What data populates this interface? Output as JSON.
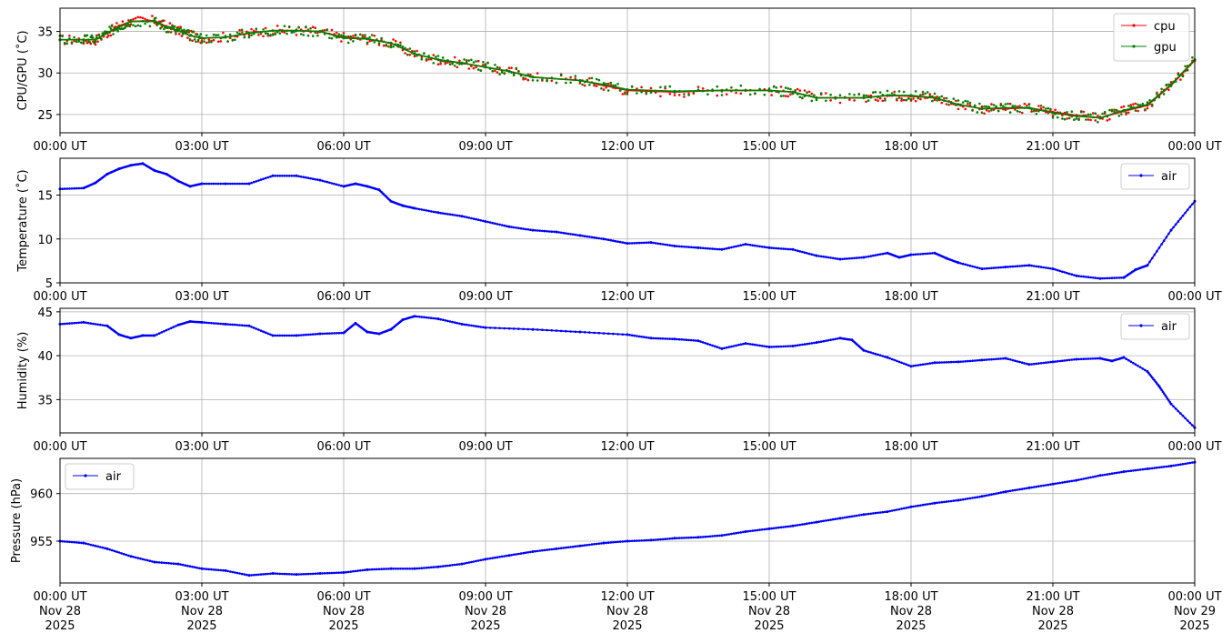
{
  "chart_data": [
    {
      "type": "line",
      "ylabel": "CPU/GPU (˚C)",
      "xlabel": "",
      "title": "",
      "x_tick_labels": [
        "00:00 UT",
        "03:00 UT",
        "06:00 UT",
        "09:00 UT",
        "12:00 UT",
        "15:00 UT",
        "18:00 UT",
        "21:00 UT",
        "00:00 UT"
      ],
      "x_hours": [
        0,
        3,
        6,
        9,
        12,
        15,
        18,
        21,
        24
      ],
      "y_ticks": [
        25,
        30,
        35
      ],
      "ylim": [
        22.8,
        37.8
      ],
      "grid": true,
      "legend_position": "top-right",
      "series": [
        {
          "name": "cpu",
          "color": "#ff0000",
          "x": [
            0,
            0.5,
            0.75,
            1.0,
            1.25,
            1.5,
            2.0,
            2.25,
            2.5,
            2.75,
            3.0,
            3.5,
            4.0,
            4.5,
            5.0,
            5.5,
            6.0,
            6.5,
            7.0,
            7.5,
            8.0,
            8.5,
            9.0,
            9.5,
            10.0,
            11.0,
            11.5,
            12.0,
            13.0,
            14.0,
            15.0,
            15.5,
            16.0,
            17.0,
            17.5,
            18.0,
            18.5,
            19.0,
            19.5,
            20.0,
            20.5,
            21.0,
            21.5,
            22.0,
            22.5,
            23.0,
            23.5,
            24.0
          ],
          "values": [
            34,
            34,
            34,
            34.8,
            35.7,
            36.2,
            36.3,
            35.6,
            35.1,
            34.5,
            34.2,
            34.3,
            34.8,
            35.1,
            35.1,
            35.0,
            34.3,
            34.1,
            33.6,
            32.3,
            31.6,
            31.2,
            30.7,
            30.2,
            29.5,
            29.1,
            28.5,
            27.9,
            27.7,
            27.9,
            27.9,
            27.7,
            27.0,
            27.0,
            27.3,
            27.2,
            27.0,
            26.2,
            25.7,
            25.7,
            25.8,
            25.3,
            24.9,
            24.6,
            25.4,
            26.1,
            28.5,
            31.5
          ]
        },
        {
          "name": "gpu",
          "color": "#008000",
          "x": [
            0,
            0.5,
            0.75,
            1.0,
            1.25,
            1.5,
            2.0,
            2.25,
            2.5,
            2.75,
            3.0,
            3.5,
            4.0,
            4.5,
            5.0,
            5.5,
            6.0,
            6.5,
            7.0,
            7.5,
            8.0,
            8.5,
            9.0,
            9.5,
            10.0,
            11.0,
            11.5,
            12.0,
            13.0,
            14.0,
            15.0,
            15.5,
            16.0,
            17.0,
            17.5,
            18.0,
            18.5,
            19.0,
            19.5,
            20.0,
            20.5,
            21.0,
            21.5,
            22.0,
            22.5,
            23.0,
            23.5,
            24.0
          ],
          "values": [
            34,
            34,
            34,
            34.8,
            35.6,
            36.2,
            36.2,
            35.5,
            35.1,
            34.5,
            34.2,
            34.3,
            34.8,
            35.1,
            35.1,
            35.0,
            34.2,
            34.1,
            33.6,
            32.3,
            31.6,
            31.2,
            30.7,
            30.2,
            29.5,
            29.1,
            28.6,
            28.0,
            27.8,
            27.9,
            27.9,
            27.7,
            27.0,
            27.0,
            27.3,
            27.3,
            27.0,
            26.2,
            25.7,
            25.8,
            25.8,
            25.2,
            24.8,
            24.6,
            25.5,
            26.2,
            28.6,
            31.6
          ]
        }
      ]
    },
    {
      "type": "line",
      "ylabel": "Temperature (˚C)",
      "xlabel": "",
      "title": "",
      "x_tick_labels": [
        "00:00 UT",
        "03:00 UT",
        "06:00 UT",
        "09:00 UT",
        "12:00 UT",
        "15:00 UT",
        "18:00 UT",
        "21:00 UT",
        "00:00 UT"
      ],
      "x_hours": [
        0,
        3,
        6,
        9,
        12,
        15,
        18,
        21,
        24
      ],
      "y_ticks": [
        5,
        10,
        15
      ],
      "ylim": [
        5,
        19.2
      ],
      "grid": true,
      "legend_position": "top-right",
      "series": [
        {
          "name": "air",
          "color": "#0000ff",
          "x": [
            0,
            0.5,
            0.75,
            1.0,
            1.25,
            1.5,
            1.75,
            2.0,
            2.25,
            2.5,
            2.75,
            3.0,
            3.5,
            4.0,
            4.5,
            5.0,
            5.5,
            6.0,
            6.25,
            6.5,
            6.75,
            7.0,
            7.25,
            7.5,
            8.0,
            8.5,
            9.0,
            9.5,
            10.0,
            10.5,
            11.0,
            11.5,
            12.0,
            12.5,
            13.0,
            13.5,
            14.0,
            14.5,
            15.0,
            15.5,
            16.0,
            16.5,
            17.0,
            17.5,
            17.75,
            18.0,
            18.5,
            18.75,
            19.0,
            19.5,
            20.0,
            20.5,
            21.0,
            21.5,
            22.0,
            22.5,
            22.75,
            23.0,
            23.5,
            24.0
          ],
          "values": [
            15.7,
            15.8,
            16.4,
            17.4,
            18.0,
            18.4,
            18.6,
            17.8,
            17.4,
            16.6,
            16.0,
            16.3,
            16.3,
            16.3,
            17.2,
            17.2,
            16.7,
            16.0,
            16.3,
            16.0,
            15.6,
            14.3,
            13.8,
            13.5,
            13.0,
            12.6,
            12.0,
            11.4,
            11.0,
            10.8,
            10.4,
            10.0,
            9.5,
            9.6,
            9.2,
            9.0,
            8.8,
            9.4,
            9.0,
            8.8,
            8.1,
            7.7,
            7.9,
            8.4,
            7.9,
            8.2,
            8.4,
            7.8,
            7.3,
            6.6,
            6.8,
            7.0,
            6.6,
            5.8,
            5.5,
            5.6,
            6.5,
            7.0,
            11.0,
            14.3
          ]
        }
      ]
    },
    {
      "type": "line",
      "ylabel": "Humidity (%)",
      "xlabel": "",
      "title": "",
      "x_tick_labels": [
        "00:00 UT",
        "03:00 UT",
        "06:00 UT",
        "09:00 UT",
        "12:00 UT",
        "15:00 UT",
        "18:00 UT",
        "21:00 UT",
        "00:00 UT"
      ],
      "x_hours": [
        0,
        3,
        6,
        9,
        12,
        15,
        18,
        21,
        24
      ],
      "y_ticks": [
        35,
        40,
        45
      ],
      "ylim": [
        31.2,
        45.4
      ],
      "grid": true,
      "legend_position": "top-right",
      "series": [
        {
          "name": "air",
          "color": "#0000ff",
          "x": [
            0,
            0.5,
            1.0,
            1.25,
            1.5,
            1.75,
            2.0,
            2.5,
            2.75,
            3.0,
            3.5,
            4.0,
            4.5,
            5.0,
            5.5,
            6.0,
            6.25,
            6.5,
            6.75,
            7.0,
            7.25,
            7.5,
            8.0,
            8.5,
            9.0,
            10.0,
            11.0,
            12.0,
            12.5,
            13.0,
            13.5,
            14.0,
            14.5,
            15.0,
            15.5,
            16.0,
            16.5,
            16.75,
            17.0,
            17.5,
            18.0,
            18.5,
            19.0,
            19.5,
            20.0,
            20.5,
            21.0,
            21.5,
            22.0,
            22.25,
            22.5,
            23.0,
            23.25,
            23.5,
            24.0
          ],
          "values": [
            43.6,
            43.8,
            43.4,
            42.4,
            42.0,
            42.3,
            42.3,
            43.5,
            43.9,
            43.8,
            43.6,
            43.4,
            42.3,
            42.3,
            42.5,
            42.6,
            43.7,
            42.7,
            42.5,
            43.0,
            44.1,
            44.5,
            44.2,
            43.6,
            43.2,
            43.0,
            42.7,
            42.4,
            42.0,
            41.9,
            41.7,
            40.8,
            41.4,
            41.0,
            41.1,
            41.5,
            42.0,
            41.8,
            40.6,
            39.8,
            38.8,
            39.2,
            39.3,
            39.5,
            39.7,
            39.0,
            39.3,
            39.6,
            39.7,
            39.4,
            39.8,
            38.2,
            36.5,
            34.5,
            31.8
          ]
        }
      ]
    },
    {
      "type": "line",
      "ylabel": "Pressure (hPa)",
      "xlabel": "",
      "title": "",
      "x_tick_labels": [
        "00:00 UT\nNov 28\n2025",
        "03:00 UT\nNov 28\n2025",
        "06:00 UT\nNov 28\n2025",
        "09:00 UT\nNov 28\n2025",
        "12:00 UT\nNov 28\n2025",
        "15:00 UT\nNov 28\n2025",
        "18:00 UT\nNov 28\n2025",
        "21:00 UT\nNov 28\n2025",
        "00:00 UT\nNov 29\n2025"
      ],
      "x_hours": [
        0,
        3,
        6,
        9,
        12,
        15,
        18,
        21,
        24
      ],
      "y_ticks": [
        955,
        960
      ],
      "ylim": [
        950.6,
        963.7
      ],
      "grid": true,
      "legend_position": "top-left",
      "series": [
        {
          "name": "air",
          "color": "#0000ff",
          "x": [
            0,
            0.5,
            1.0,
            1.5,
            2.0,
            2.5,
            3.0,
            3.5,
            4.0,
            4.5,
            5.0,
            5.5,
            6.0,
            6.5,
            7.0,
            7.5,
            8.0,
            8.5,
            9.0,
            9.5,
            10.0,
            10.5,
            11.0,
            11.5,
            12.0,
            12.5,
            13.0,
            13.5,
            14.0,
            14.5,
            15.0,
            15.5,
            16.0,
            16.5,
            17.0,
            17.5,
            18.0,
            18.5,
            19.0,
            19.5,
            20.0,
            20.5,
            21.0,
            21.5,
            22.0,
            22.5,
            23.0,
            23.5,
            24.0
          ],
          "values": [
            955.0,
            954.8,
            954.2,
            953.4,
            952.8,
            952.6,
            952.1,
            951.9,
            951.4,
            951.6,
            951.5,
            951.6,
            951.7,
            952.0,
            952.1,
            952.1,
            952.3,
            952.6,
            953.1,
            953.5,
            953.9,
            954.2,
            954.5,
            954.8,
            955.0,
            955.1,
            955.3,
            955.4,
            955.6,
            956.0,
            956.3,
            956.6,
            957.0,
            957.4,
            957.8,
            958.1,
            958.6,
            959.0,
            959.3,
            959.7,
            960.2,
            960.6,
            961.0,
            961.4,
            961.9,
            962.3,
            962.6,
            962.9,
            963.3
          ]
        }
      ]
    }
  ]
}
